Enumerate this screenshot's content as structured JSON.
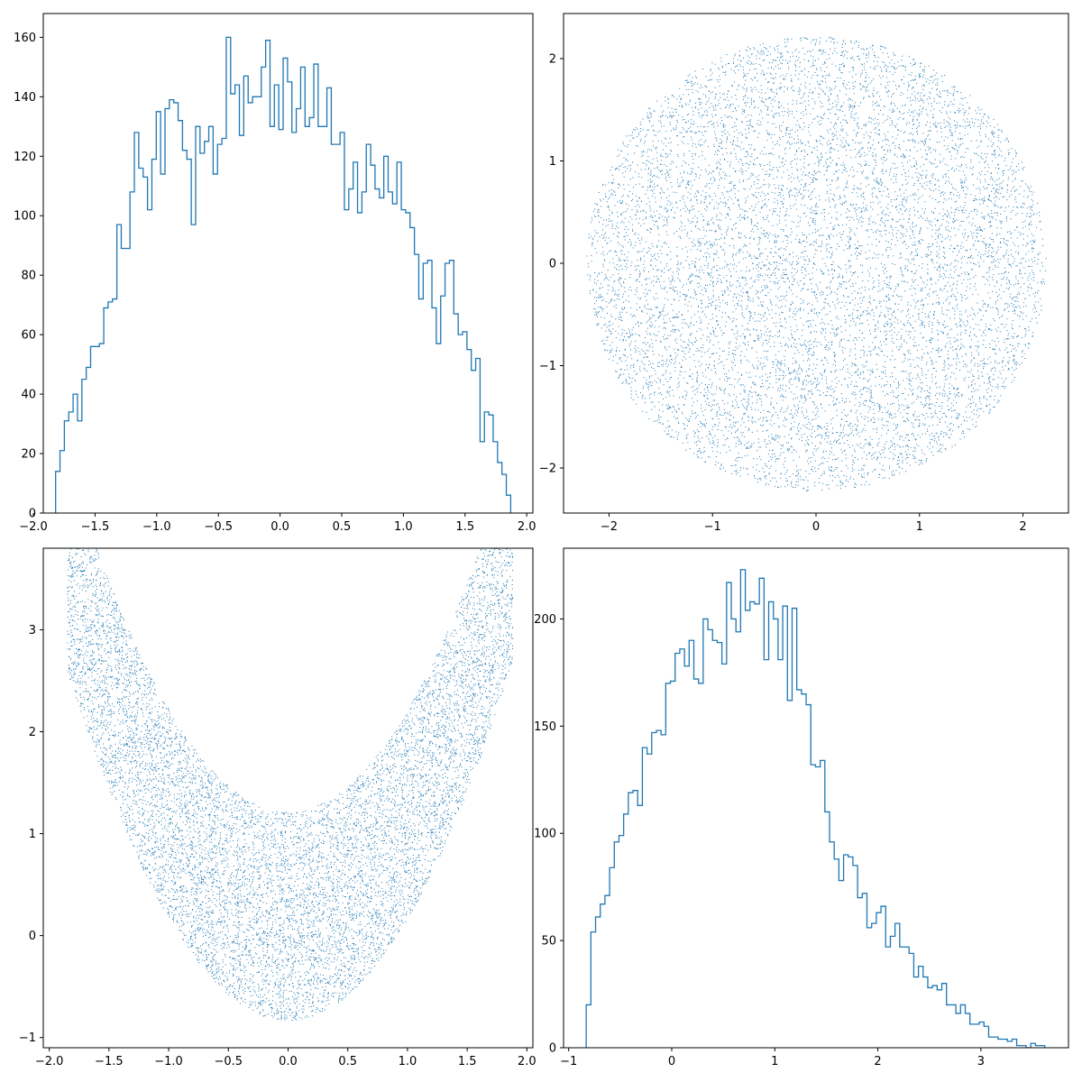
{
  "colors": {
    "primary": "#1f77b4",
    "axes": "#000000",
    "background": "#ffffff"
  },
  "chart_data": [
    {
      "type": "histogram",
      "histtype": "step",
      "title": "",
      "xlabel": "",
      "ylabel": "",
      "xlim": [
        -1.92,
        2.05
      ],
      "ylim": [
        0,
        168
      ],
      "xticks": [
        -2.0,
        -1.5,
        -1.0,
        -0.5,
        0.0,
        0.5,
        1.0,
        1.5,
        2.0
      ],
      "xtick_labels": [
        "−2.0",
        "−1.5",
        "−1.0",
        "−0.5",
        "0.0",
        "0.5",
        "1.0",
        "1.5",
        "2.0"
      ],
      "yticks": [
        0,
        20,
        40,
        60,
        80,
        100,
        120,
        140,
        160
      ],
      "ytick_labels": [
        "0",
        "20",
        "40",
        "60",
        "80",
        "100",
        "120",
        "140",
        "160"
      ],
      "bin_start": -1.82,
      "bin_end": 1.87,
      "counts": [
        14,
        21,
        31,
        34,
        40,
        31,
        45,
        49,
        56,
        56,
        57,
        69,
        71,
        72,
        97,
        89,
        89,
        108,
        128,
        116,
        113,
        102,
        119,
        135,
        114,
        136,
        139,
        138,
        132,
        122,
        119,
        97,
        130,
        121,
        125,
        130,
        114,
        124,
        126,
        160,
        141,
        144,
        127,
        147,
        138,
        140,
        140,
        150,
        159,
        130,
        144,
        129,
        153,
        145,
        128,
        136,
        150,
        130,
        133,
        151,
        130,
        130,
        143,
        124,
        124,
        128,
        102,
        109,
        118,
        101,
        108,
        124,
        117,
        109,
        106,
        120,
        108,
        104,
        118,
        102,
        101,
        96,
        87,
        72,
        84,
        85,
        69,
        57,
        73,
        84,
        85,
        67,
        60,
        61,
        55,
        48,
        52,
        24,
        34,
        33,
        24,
        17,
        13,
        6
      ]
    },
    {
      "type": "scatter",
      "title": "",
      "xlabel": "",
      "ylabel": "",
      "distribution": "uniform disk",
      "center": [
        0,
        0
      ],
      "radius": 2.22,
      "n_points": 10000,
      "marker": "pixel",
      "xlim": [
        -2.44,
        2.44
      ],
      "ylim": [
        -2.44,
        2.44
      ],
      "xticks": [
        -2,
        -1,
        0,
        1,
        2
      ],
      "xtick_labels": [
        "−2",
        "−1",
        "0",
        "1",
        "2"
      ],
      "yticks": [
        -2,
        -1,
        0,
        1,
        2
      ],
      "ytick_labels": [
        "−2",
        "−1",
        "0",
        "1",
        "2"
      ]
    },
    {
      "type": "scatter",
      "title": "",
      "xlabel": "",
      "ylabel": "",
      "distribution": "parabolic band",
      "x_range": [
        -1.85,
        1.88
      ],
      "lower_boundary": "y = x^2 - 0.83",
      "upper_boundary": "y = x^2 + 1.22",
      "n_points": 10000,
      "marker": "pixel",
      "xlim": [
        -2.05,
        2.05
      ],
      "ylim": [
        -1.1,
        3.8
      ],
      "xticks": [
        -2.0,
        -1.5,
        -1.0,
        -0.5,
        0.0,
        0.5,
        1.0,
        1.5,
        2.0
      ],
      "xtick_labels": [
        "−2.0",
        "−1.5",
        "−1.0",
        "−0.5",
        "0.0",
        "0.5",
        "1.0",
        "1.5",
        "2.0"
      ],
      "yticks": [
        -1,
        0,
        1,
        2,
        3
      ],
      "ytick_labels": [
        "−1",
        "0",
        "1",
        "2",
        "3"
      ]
    },
    {
      "type": "histogram",
      "histtype": "step",
      "title": "",
      "xlabel": "",
      "ylabel": "",
      "xlim": [
        -1.05,
        3.85
      ],
      "ylim": [
        0,
        233
      ],
      "xticks": [
        -1,
        0,
        1,
        2,
        3
      ],
      "xtick_labels": [
        "−1",
        "0",
        "1",
        "2",
        "3"
      ],
      "yticks": [
        0,
        50,
        100,
        150,
        200
      ],
      "ytick_labels": [
        "0",
        "50",
        "100",
        "150",
        "200"
      ],
      "bin_start": -0.83,
      "bin_end": 3.62,
      "counts": [
        20,
        54,
        61,
        67,
        71,
        84,
        96,
        99,
        109,
        119,
        120,
        113,
        140,
        137,
        147,
        148,
        146,
        170,
        171,
        184,
        186,
        178,
        190,
        172,
        170,
        200,
        195,
        190,
        189,
        179,
        217,
        200,
        194,
        223,
        204,
        208,
        207,
        219,
        181,
        208,
        200,
        181,
        206,
        162,
        205,
        167,
        165,
        160,
        132,
        131,
        134,
        110,
        96,
        88,
        78,
        90,
        89,
        85,
        70,
        72,
        56,
        58,
        63,
        66,
        47,
        52,
        58,
        47,
        47,
        44,
        33,
        38,
        33,
        28,
        29,
        27,
        30,
        20,
        20,
        16,
        20,
        16,
        11,
        11,
        12,
        10,
        5,
        5,
        4,
        4,
        3,
        4,
        1,
        1,
        0,
        2,
        1,
        1
      ]
    }
  ]
}
